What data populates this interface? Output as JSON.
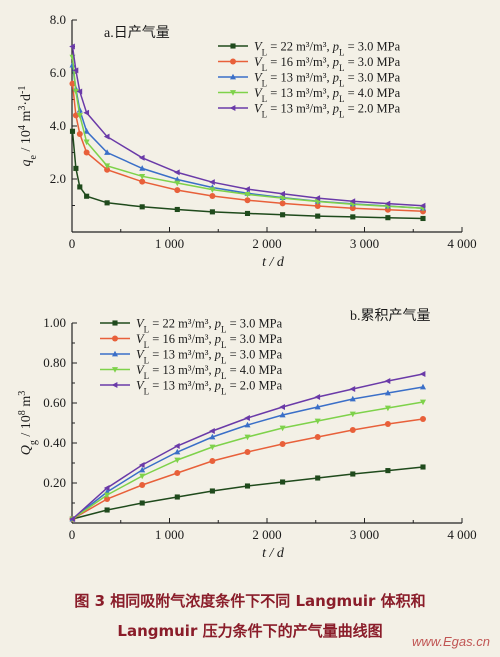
{
  "caption": {
    "line1": "图 3   相同吸附气浓度条件下不同 Langmuir 体积和",
    "line2": "Langmuir 压力条件下的产气量曲线图"
  },
  "watermark": "www.Egas.cn",
  "chart_data": [
    {
      "type": "line",
      "panel_label": "a.日产气量",
      "xlabel": "t / d",
      "ylabel": "q_e / 10^4 m^3·d^-1",
      "xlim": [
        0,
        4000
      ],
      "ylim": [
        0,
        8.0
      ],
      "xticks": [
        0,
        1000,
        2000,
        3000,
        4000
      ],
      "xtick_labels": [
        "0",
        "1 000",
        "2 000",
        "3 000",
        "4 000"
      ],
      "yticks": [
        2.0,
        4.0,
        6.0,
        8.0
      ],
      "ytick_labels": [
        "2.0",
        "4.0",
        "6.0",
        "8.0"
      ],
      "legend_position": "top-right",
      "x": [
        5,
        40,
        80,
        150,
        360,
        720,
        1080,
        1440,
        1800,
        2160,
        2520,
        2880,
        3240,
        3600
      ],
      "series": [
        {
          "name": "V_L = 22 m³/m³, p_L = 3.0 MPa",
          "color": "#1f4a1c",
          "marker": "square",
          "values": [
            3.8,
            2.4,
            1.7,
            1.35,
            1.1,
            0.95,
            0.85,
            0.76,
            0.7,
            0.65,
            0.6,
            0.57,
            0.54,
            0.51
          ]
        },
        {
          "name": "V_L = 16 m³/m³, p_L = 3.0 MPa",
          "color": "#e8603a",
          "marker": "circle",
          "values": [
            5.6,
            4.4,
            3.7,
            3.0,
            2.35,
            1.9,
            1.58,
            1.36,
            1.2,
            1.08,
            0.98,
            0.9,
            0.84,
            0.78
          ]
        },
        {
          "name": "V_L = 13 m³/m³, p_L = 3.0 MPa",
          "color": "#3a6fc8",
          "marker": "triangle-up",
          "values": [
            6.3,
            5.4,
            4.6,
            3.8,
            3.0,
            2.4,
            1.98,
            1.68,
            1.46,
            1.3,
            1.16,
            1.06,
            0.98,
            0.9
          ]
        },
        {
          "name": "V_L = 13 m³/m³, p_L = 4.0 MPa",
          "color": "#7ed24a",
          "marker": "triangle-down",
          "values": [
            6.6,
            5.3,
            4.4,
            3.4,
            2.5,
            2.1,
            1.85,
            1.6,
            1.42,
            1.28,
            1.15,
            1.05,
            0.97,
            0.9
          ]
        },
        {
          "name": "V_L = 13 m³/m³, p_L = 2.0 MPa",
          "color": "#6a3aa8",
          "marker": "triangle-left",
          "values": [
            7.0,
            6.1,
            5.3,
            4.5,
            3.6,
            2.8,
            2.25,
            1.88,
            1.62,
            1.44,
            1.28,
            1.16,
            1.07,
            0.99
          ]
        }
      ]
    },
    {
      "type": "line",
      "panel_label": "b.累积产气量",
      "xlabel": "t / d",
      "ylabel": "Q_g / 10^8 m^3",
      "xlim": [
        0,
        4000
      ],
      "ylim": [
        0,
        1.0
      ],
      "xticks": [
        0,
        1000,
        2000,
        3000,
        4000
      ],
      "xtick_labels": [
        "0",
        "1 000",
        "2 000",
        "3 000",
        "4 000"
      ],
      "yticks": [
        0.2,
        0.4,
        0.6,
        0.8,
        1.0
      ],
      "ytick_labels": [
        "0.20",
        "0.40",
        "0.60",
        "0.80",
        "1.00"
      ],
      "legend_position": "top-left",
      "x": [
        5,
        360,
        720,
        1080,
        1440,
        1800,
        2160,
        2520,
        2880,
        3240,
        3600
      ],
      "series": [
        {
          "name": "V_L = 22 m³/m³, p_L = 3.0 MPa",
          "color": "#1f4a1c",
          "marker": "square",
          "values": [
            0.02,
            0.065,
            0.1,
            0.13,
            0.16,
            0.185,
            0.205,
            0.225,
            0.245,
            0.262,
            0.28
          ]
        },
        {
          "name": "V_L = 16 m³/m³, p_L = 3.0 MPa",
          "color": "#e8603a",
          "marker": "circle",
          "values": [
            0.02,
            0.12,
            0.19,
            0.25,
            0.31,
            0.355,
            0.395,
            0.43,
            0.465,
            0.495,
            0.52
          ]
        },
        {
          "name": "V_L = 13 m³/m³, p_L = 3.0 MPa",
          "color": "#3a6fc8",
          "marker": "triangle-up",
          "values": [
            0.02,
            0.155,
            0.265,
            0.355,
            0.43,
            0.49,
            0.54,
            0.58,
            0.62,
            0.65,
            0.68
          ]
        },
        {
          "name": "V_L = 13 m³/m³, p_L = 4.0 MPa",
          "color": "#7ed24a",
          "marker": "triangle-down",
          "values": [
            0.02,
            0.14,
            0.235,
            0.315,
            0.38,
            0.43,
            0.475,
            0.51,
            0.545,
            0.575,
            0.605
          ]
        },
        {
          "name": "V_L = 13 m³/m³, p_L = 2.0 MPa",
          "color": "#6a3aa8",
          "marker": "triangle-left",
          "values": [
            0.02,
            0.175,
            0.29,
            0.385,
            0.46,
            0.525,
            0.58,
            0.63,
            0.67,
            0.71,
            0.745
          ]
        }
      ]
    }
  ]
}
